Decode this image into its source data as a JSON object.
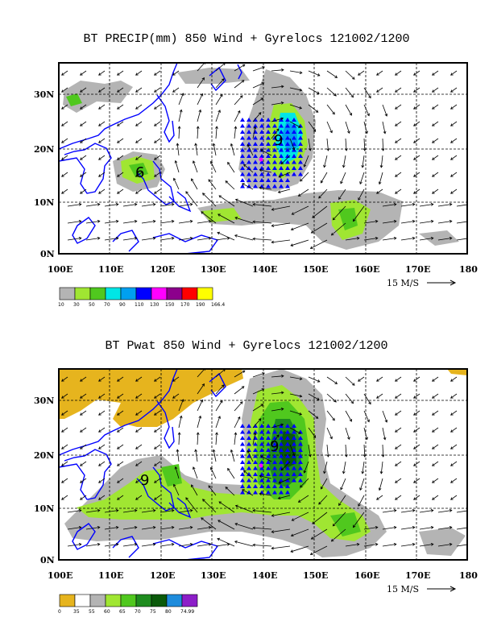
{
  "panels": [
    {
      "title": "BT PRECIP(mm) 850 Wind + Gyrelocs 121002/1200",
      "lat_ticks": [
        "30N",
        "20N",
        "10N",
        "0N"
      ],
      "lon_ticks": [
        "100E",
        "110E",
        "120E",
        "130E",
        "140E",
        "150E",
        "160E",
        "170E",
        "180"
      ],
      "ref_vector_label": "15 M/S",
      "legend_labels": [
        "10",
        "30",
        "50",
        "70",
        "90",
        "110",
        "130",
        "150",
        "170",
        "190",
        "166.4"
      ],
      "legend_colors": [
        "#b4b4b4",
        "#a0e632",
        "#50c81e",
        "#00e6e6",
        "#00a0f0",
        "#0000ff",
        "#ff00ff",
        "#8c008c",
        "#ff0000",
        "#ffff00"
      ],
      "gyre_markers": [
        "9",
        "6"
      ]
    },
    {
      "title": "BT Pwat 850 Wind + Gyrelocs 121002/1200",
      "lat_ticks": [
        "30N",
        "20N",
        "10N",
        "0N"
      ],
      "lon_ticks": [
        "100E",
        "110E",
        "120E",
        "130E",
        "140E",
        "150E",
        "160E",
        "170E",
        "180"
      ],
      "ref_vector_label": "15 M/S",
      "legend_labels": [
        "0",
        "35",
        "55",
        "60",
        "65",
        "70",
        "75",
        "80",
        "74.99"
      ],
      "legend_colors": [
        "#e6b41e",
        "#ffffff",
        "#b4b4b4",
        "#a0e632",
        "#50c81e",
        "#1e8c1e",
        "#0a5a0a",
        "#1e8cdc",
        "#8c1ec8"
      ],
      "gyre_markers": [
        "9",
        "9"
      ]
    }
  ]
}
